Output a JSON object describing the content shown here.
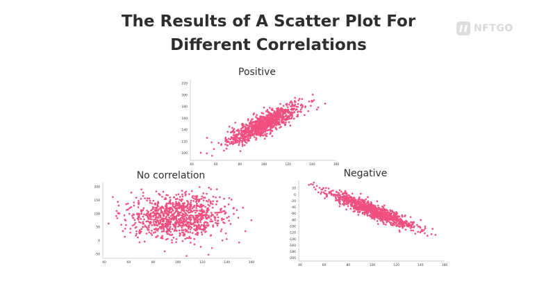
{
  "title_line1": "The Results of A Scatter Plot For",
  "title_line2": "Different Correlations",
  "logo": {
    "text": "NFTGO",
    "icon": "nftgo-logo-icon"
  },
  "colors": {
    "points": "#f0507f",
    "title": "#2e2e2e"
  },
  "chart_data": [
    {
      "type": "scatter",
      "title": "Positive",
      "correlation": "positive",
      "xlabel": "",
      "ylabel": "",
      "xlim": [
        40,
        160
      ],
      "ylim": [
        90,
        225
      ],
      "xticks": [
        40,
        60,
        80,
        100,
        120,
        140,
        160
      ],
      "yticks": [
        100,
        120,
        140,
        160,
        180,
        200,
        220
      ],
      "n_points": 1000,
      "x_mean": 100,
      "x_sd": 15,
      "y_mean": 150,
      "slope": 1.0,
      "noise_sd": 9,
      "grid": false
    },
    {
      "type": "scatter",
      "title": "No correlation",
      "correlation": "none",
      "xlabel": "",
      "ylabel": "",
      "xlim": [
        40,
        160
      ],
      "ylim": [
        -60,
        210
      ],
      "xticks": [
        40,
        60,
        80,
        100,
        120,
        140,
        160
      ],
      "yticks": [
        -50,
        0,
        50,
        100,
        150,
        200
      ],
      "n_points": 1000,
      "x_mean": 100,
      "x_sd": 20,
      "y_mean": 90,
      "slope": 0,
      "noise_sd": 40,
      "grid": false
    },
    {
      "type": "scatter",
      "title": "Negative",
      "correlation": "negative",
      "xlabel": "",
      "ylabel": "",
      "xlim": [
        40,
        160
      ],
      "ylim": [
        -205,
        40
      ],
      "xticks": [
        40,
        60,
        80,
        100,
        120,
        140,
        160
      ],
      "yticks": [
        20,
        0,
        -20,
        -40,
        -60,
        -80,
        -100,
        -120,
        -140,
        -160,
        -180,
        -200
      ],
      "n_points": 1000,
      "x_mean": 100,
      "x_sd": 18,
      "y_mean": -50,
      "slope": -1.5,
      "noise_sd": 11,
      "grid": false
    }
  ]
}
